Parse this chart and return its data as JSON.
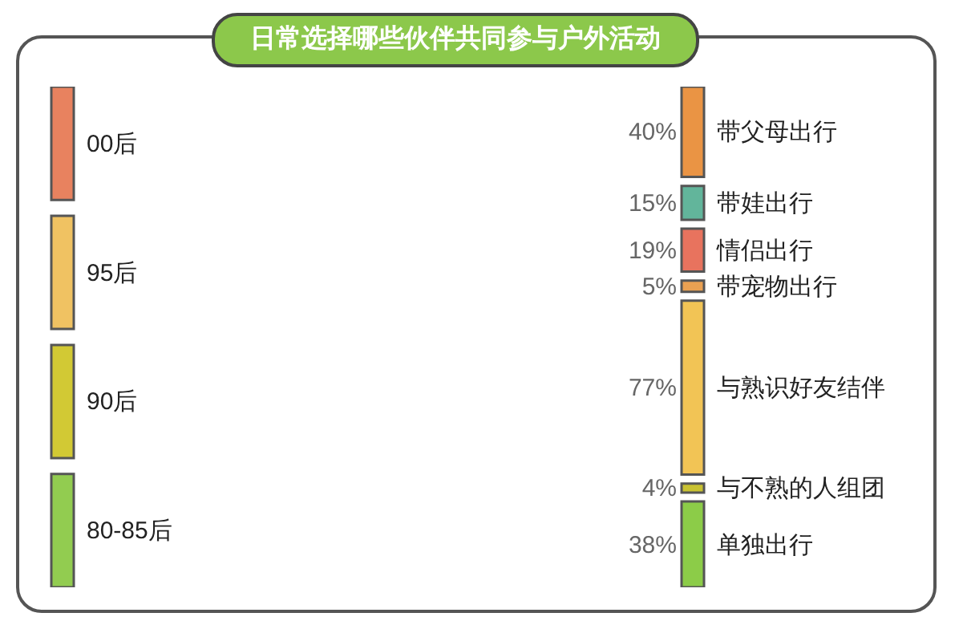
{
  "chart_data": [
    {
      "type": "other",
      "title": "日常选择哪些伙伴共同参与户外活动",
      "categories": [
        "00后",
        "95后",
        "90后",
        "80-85后"
      ],
      "colors": [
        "#e8825f",
        "#f0c262",
        "#d2c934",
        "#92cc50"
      ]
    },
    {
      "type": "other",
      "categories": [
        "带父母出行",
        "带娃出行",
        "情侣出行",
        "带宠物出行",
        "与熟识好友结伴",
        "与不熟的人组团",
        "单独出行"
      ],
      "values": [
        40,
        15,
        19,
        5,
        77,
        4,
        38
      ],
      "value_labels": [
        "40%",
        "15%",
        "19%",
        "5%",
        "77%",
        "4%",
        "38%"
      ],
      "colors": [
        "#ea9444",
        "#62b59b",
        "#e8735e",
        "#eaa152",
        "#f2c455",
        "#c9c232",
        "#8ccc48"
      ]
    }
  ]
}
